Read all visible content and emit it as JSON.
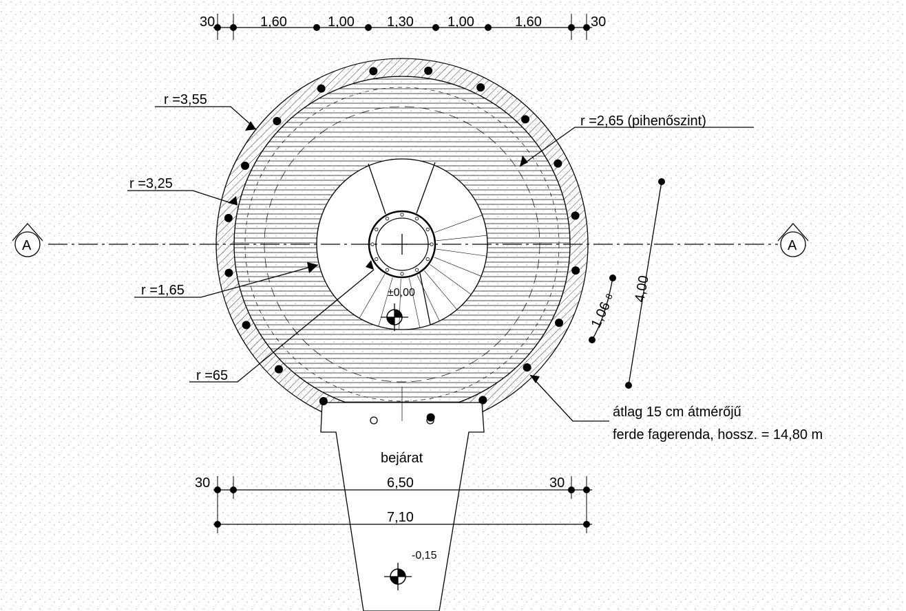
{
  "top_dimensions": [
    "30",
    "1,60",
    "1,00",
    "1,30",
    "1,00",
    "1,60",
    "30"
  ],
  "radius_labels": [
    "r =3,55",
    "r =3,25",
    "r =1,65",
    "r =65",
    "r =2,65 (pihenőszint)"
  ],
  "section_markers": [
    "A",
    "A"
  ],
  "level_marks": [
    "±0,00",
    "-0,15"
  ],
  "side_dimensions": {
    "total": "4,00",
    "step": "1,06",
    "step_superscript": "8"
  },
  "note": [
    "átlag 15 cm átmérőjű",
    "ferde fagerenda, hossz. = 14,80 m"
  ],
  "entrance_label": "bejárat",
  "bottom_dimensions": {
    "inner": [
      "30",
      "6,50",
      "30"
    ],
    "overall": "7,10"
  }
}
